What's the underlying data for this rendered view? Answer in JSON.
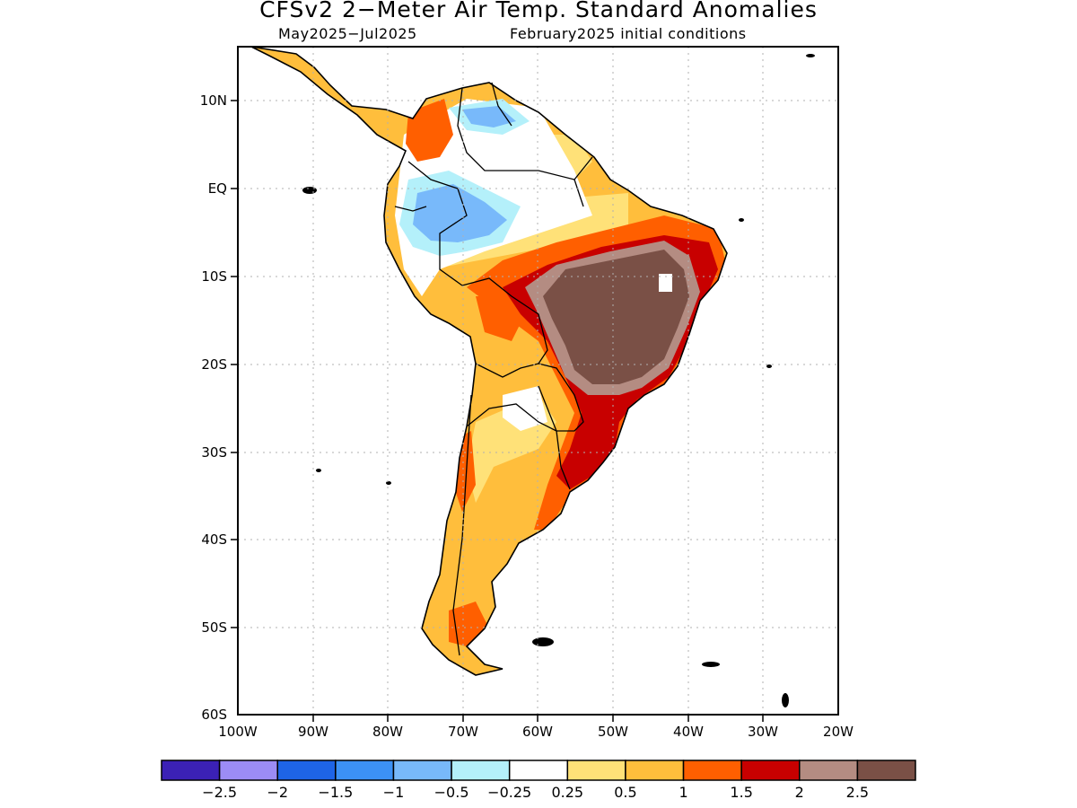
{
  "title": "CFSv2 2−Meter Air Temp. Standard Anomalies",
  "subtitle_period": "May2025−Jul2025",
  "subtitle_init": "February2025 initial conditions",
  "lat_labels": [
    "10N",
    "EQ",
    "10S",
    "20S",
    "30S",
    "40S",
    "50S",
    "60S"
  ],
  "lat_values": [
    10,
    0,
    -10,
    -20,
    -30,
    -40,
    -50,
    -60
  ],
  "lon_labels": [
    "100W",
    "90W",
    "80W",
    "70W",
    "60W",
    "50W",
    "40W",
    "30W",
    "20W"
  ],
  "lon_values": [
    -100,
    -90,
    -80,
    -70,
    -60,
    -50,
    -40,
    -30,
    -20
  ],
  "extent": {
    "lon_min": -100,
    "lon_max": -20,
    "lat_min": -60,
    "lat_max": 16
  },
  "colorbar": {
    "colors": [
      "#3b21b5",
      "#9c8cf5",
      "#1e64e6",
      "#3c91f5",
      "#78b9fa",
      "#b4f0fa",
      "#ffffff",
      "#ffe178",
      "#ffbe3c",
      "#ff5f00",
      "#c80000",
      "#b48c82",
      "#7a5046"
    ],
    "labels": [
      "−2.5",
      "−2",
      "−1.5",
      "−1",
      "−0.5",
      "−0.25",
      "0.25",
      "0.5",
      "1",
      "1.5",
      "2",
      "2.5"
    ]
  }
}
